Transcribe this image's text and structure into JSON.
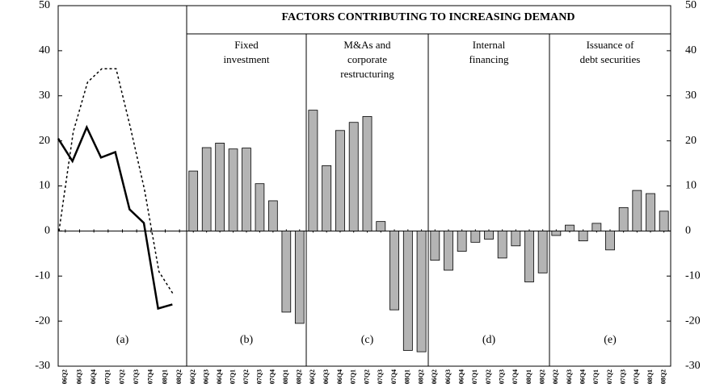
{
  "chart_data": {
    "type": "panel-bar",
    "header": "FACTORS CONTRIBUTING TO INCREASING DEMAND",
    "ylim": [
      -30,
      50
    ],
    "yticks": [
      -30,
      -20,
      -10,
      0,
      10,
      20,
      30,
      40,
      50
    ],
    "bar_color": "#b4b4b4",
    "panels": [
      {
        "type": "line",
        "label": "(a)",
        "categories": [
          "06Q2",
          "06Q3",
          "06Q4",
          "07Q1",
          "07Q2",
          "07Q3",
          "07Q4",
          "08Q1",
          "08Q2"
        ],
        "series": [
          {
            "color": "#000000",
            "style": "solid",
            "values": [
              20.5,
              15.5,
              23,
              16.3,
              17.5,
              4.8,
              1.8,
              -17.2,
              -16.3
            ]
          },
          {
            "color": "#000000",
            "style": "dashed",
            "values": [
              0,
              22,
              33,
              36,
              36,
              23,
              9,
              -9,
              -14
            ]
          }
        ]
      },
      {
        "type": "bar",
        "label": "(b)",
        "title_lines": [
          "Fixed",
          "investment"
        ],
        "categories": [
          "06Q2",
          "06Q3",
          "06Q4",
          "07Q1",
          "07Q2",
          "07Q3",
          "07Q4",
          "08Q1",
          "08Q2"
        ],
        "values": [
          13.3,
          18.5,
          19.5,
          18.2,
          18.4,
          10.5,
          6.7,
          -18,
          -20.5
        ]
      },
      {
        "type": "bar",
        "label": "(c)",
        "title_lines": [
          "M&As and",
          "corporate",
          "restructuring"
        ],
        "categories": [
          "06Q2",
          "06Q3",
          "06Q4",
          "07Q1",
          "07Q2",
          "07Q3",
          "07Q4",
          "08Q1",
          "08Q2"
        ],
        "values": [
          26.8,
          14.5,
          22.3,
          24.1,
          25.4,
          2.1,
          -17.5,
          -26.5,
          -26.8
        ]
      },
      {
        "type": "bar",
        "label": "(d)",
        "title_lines": [
          "Internal",
          "financing"
        ],
        "categories": [
          "06Q2",
          "06Q3",
          "06Q4",
          "07Q1",
          "07Q2",
          "07Q3",
          "07Q4",
          "08Q1",
          "08Q2"
        ],
        "values": [
          -6.5,
          -8.7,
          -4.5,
          -2.5,
          -1.8,
          -6,
          -3.3,
          -11.3,
          -9.3
        ]
      },
      {
        "type": "bar",
        "label": "(e)",
        "title_lines": [
          "Issuance of",
          "debt securities"
        ],
        "categories": [
          "06Q2",
          "06Q3",
          "06Q4",
          "07Q1",
          "07Q2",
          "07Q3",
          "07Q4",
          "08Q1",
          "08Q2"
        ],
        "values": [
          -1,
          1.3,
          -2.2,
          1.7,
          -4.2,
          5.2,
          9,
          8.3,
          4.4
        ]
      }
    ]
  }
}
